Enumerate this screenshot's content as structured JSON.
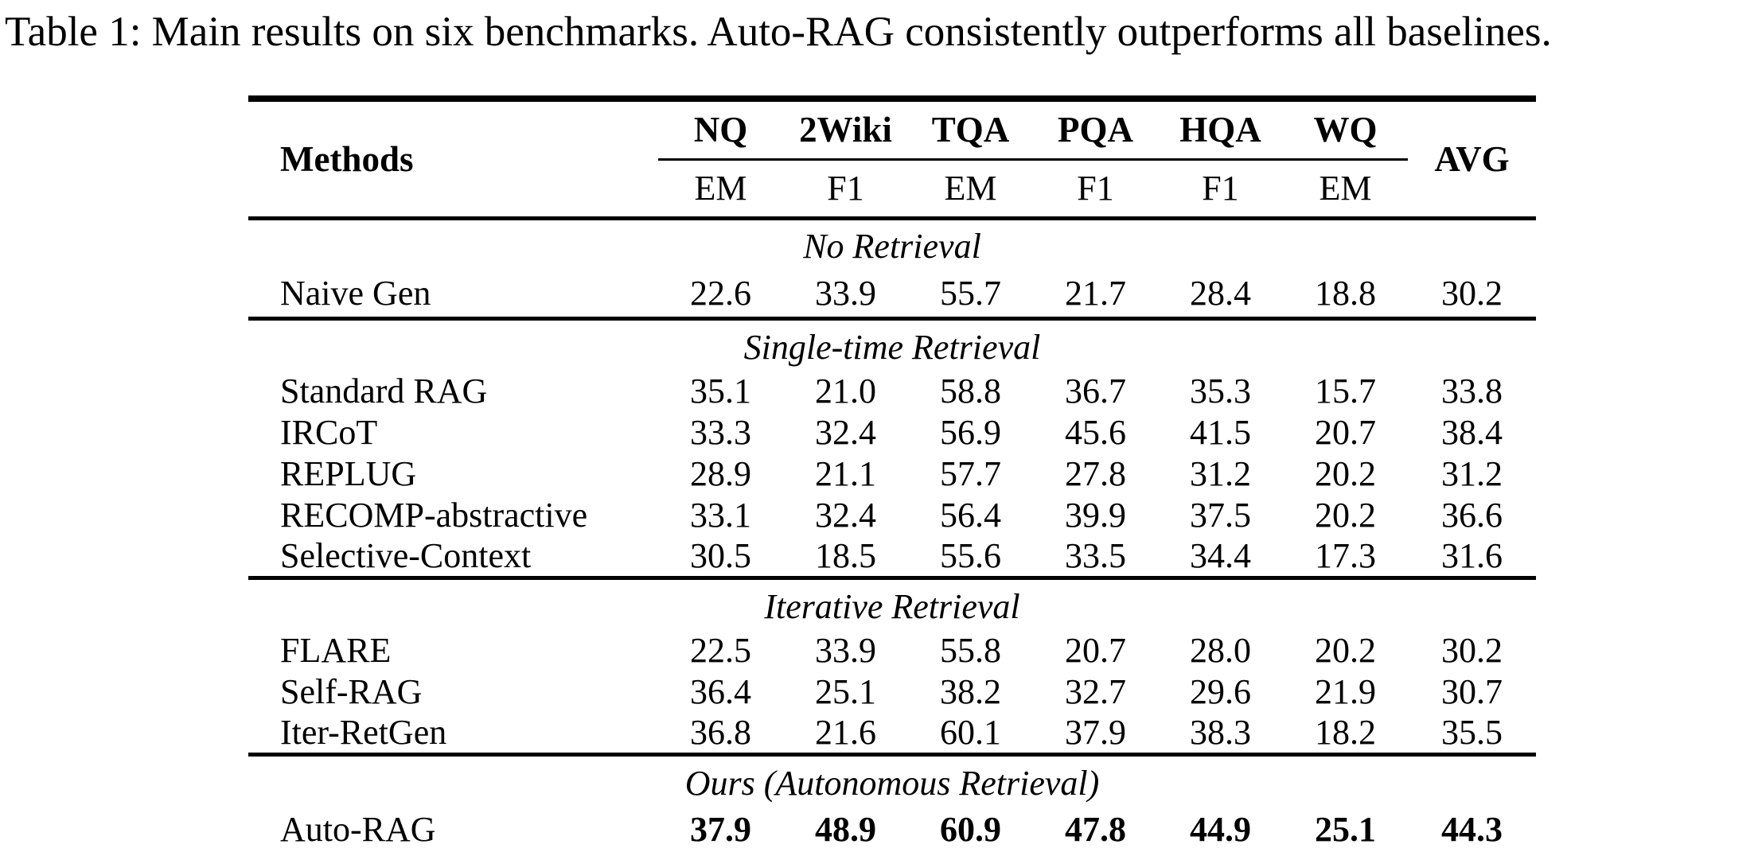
{
  "caption": "Table 1: Main results on six benchmarks. Auto-RAG consistently outperforms all baselines.",
  "colors": {
    "text": "#000000",
    "background": "#ffffff",
    "rule": "#000000"
  },
  "table": {
    "header": {
      "methods": "Methods",
      "benchmarks": [
        "NQ",
        "2Wiki",
        "TQA",
        "PQA",
        "HQA",
        "WQ"
      ],
      "avg": "AVG"
    },
    "metrics": [
      "EM",
      "F1",
      "EM",
      "F1",
      "F1",
      "EM"
    ],
    "sections": [
      {
        "title": "No Retrieval",
        "rows": [
          {
            "method": "Naive Gen",
            "bold": false,
            "values": [
              "22.6",
              "33.9",
              "55.7",
              "21.7",
              "28.4",
              "18.8",
              "30.2"
            ]
          }
        ]
      },
      {
        "title": "Single-time Retrieval",
        "rows": [
          {
            "method": "Standard RAG",
            "bold": false,
            "values": [
              "35.1",
              "21.0",
              "58.8",
              "36.7",
              "35.3",
              "15.7",
              "33.8"
            ]
          },
          {
            "method": "IRCoT",
            "bold": false,
            "values": [
              "33.3",
              "32.4",
              "56.9",
              "45.6",
              "41.5",
              "20.7",
              "38.4"
            ]
          },
          {
            "method": "REPLUG",
            "bold": false,
            "values": [
              "28.9",
              "21.1",
              "57.7",
              "27.8",
              "31.2",
              "20.2",
              "31.2"
            ]
          },
          {
            "method": "RECOMP-abstractive",
            "bold": false,
            "values": [
              "33.1",
              "32.4",
              "56.4",
              "39.9",
              "37.5",
              "20.2",
              "36.6"
            ]
          },
          {
            "method": "Selective-Context",
            "bold": false,
            "values": [
              "30.5",
              "18.5",
              "55.6",
              "33.5",
              "34.4",
              "17.3",
              "31.6"
            ]
          }
        ]
      },
      {
        "title": "Iterative Retrieval",
        "rows": [
          {
            "method": "FLARE",
            "bold": false,
            "values": [
              "22.5",
              "33.9",
              "55.8",
              "20.7",
              "28.0",
              "20.2",
              "30.2"
            ]
          },
          {
            "method": "Self-RAG",
            "bold": false,
            "values": [
              "36.4",
              "25.1",
              "38.2",
              "32.7",
              "29.6",
              "21.9",
              "30.7"
            ]
          },
          {
            "method": "Iter-RetGen",
            "bold": false,
            "values": [
              "36.8",
              "21.6",
              "60.1",
              "37.9",
              "38.3",
              "18.2",
              "35.5"
            ]
          }
        ]
      },
      {
        "title": "Ours (Autonomous Retrieval)",
        "rows": [
          {
            "method": "Auto-RAG",
            "bold": true,
            "values": [
              "37.9",
              "48.9",
              "60.9",
              "47.8",
              "44.9",
              "25.1",
              "44.3"
            ]
          }
        ]
      }
    ]
  }
}
